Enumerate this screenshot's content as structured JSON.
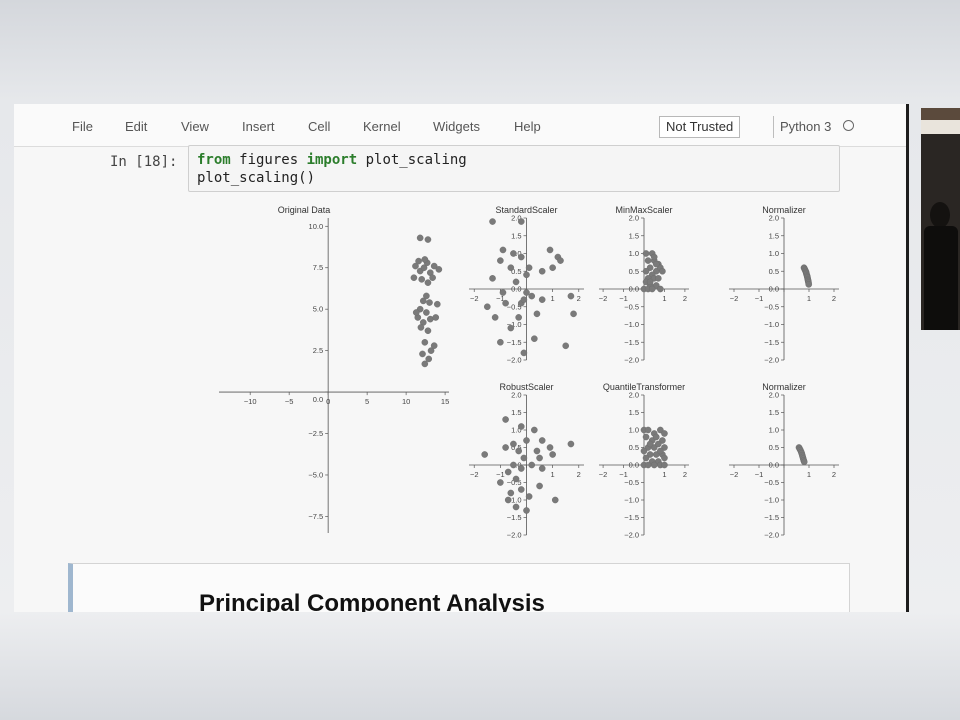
{
  "menubar": {
    "items": [
      "File",
      "Edit",
      "View",
      "Insert",
      "Cell",
      "Kernel",
      "Widgets",
      "Help"
    ],
    "trust_label": "Not Trusted",
    "kernel_name": "Python 3"
  },
  "code_cell": {
    "prompt": "In [18]:",
    "line1": {
      "kw1": "from",
      "t1": " figures ",
      "kw2": "import",
      "t2": " plot_scaling"
    },
    "line2": "plot_scaling()"
  },
  "markdown_cell": {
    "heading": "Principal Component Analysis"
  },
  "chart_data": [
    {
      "type": "scatter",
      "title": "Original Data",
      "xticks": [
        -10,
        -5,
        0,
        5,
        10,
        15
      ],
      "yticks": [
        -7.5,
        -5.0,
        -2.5,
        0.0,
        2.5,
        5.0,
        7.5,
        10.0
      ],
      "xlim": [
        -14,
        15.5
      ],
      "ylim": [
        -8.5,
        10.5
      ],
      "marker_color": "#7a7a7a",
      "points": [
        [
          11.8,
          9.3
        ],
        [
          12.8,
          9.2
        ],
        [
          11.2,
          7.6
        ],
        [
          11.8,
          7.3
        ],
        [
          12.3,
          7.5
        ],
        [
          12.7,
          7.8
        ],
        [
          13.1,
          7.2
        ],
        [
          13.6,
          7.6
        ],
        [
          14.2,
          7.4
        ],
        [
          11.0,
          6.9
        ],
        [
          12.0,
          6.8
        ],
        [
          12.8,
          6.6
        ],
        [
          13.4,
          6.9
        ],
        [
          11.6,
          7.9
        ],
        [
          12.4,
          8.0
        ],
        [
          12.6,
          5.8
        ],
        [
          12.2,
          5.5
        ],
        [
          13.0,
          5.4
        ],
        [
          14.0,
          5.3
        ],
        [
          11.8,
          5.0
        ],
        [
          12.6,
          4.8
        ],
        [
          11.5,
          4.5
        ],
        [
          12.2,
          4.2
        ],
        [
          13.1,
          4.4
        ],
        [
          11.9,
          3.9
        ],
        [
          12.8,
          3.7
        ],
        [
          13.8,
          4.5
        ],
        [
          11.3,
          4.8
        ],
        [
          12.4,
          3.0
        ],
        [
          13.2,
          2.5
        ],
        [
          12.1,
          2.3
        ],
        [
          12.9,
          2.0
        ],
        [
          13.6,
          2.8
        ],
        [
          12.4,
          1.7
        ]
      ]
    },
    {
      "type": "scatter",
      "title": "StandardScaler",
      "xticks": [
        -2,
        -1,
        0,
        1,
        2
      ],
      "yticks": [
        -2.0,
        -1.5,
        -1.0,
        -0.5,
        0.0,
        0.5,
        1.0,
        1.5,
        2.0
      ],
      "xlim": [
        -2.2,
        2.2
      ],
      "ylim": [
        -2.0,
        2.0
      ],
      "marker_color": "#7a7a7a",
      "points": [
        [
          -1.3,
          1.9
        ],
        [
          -0.2,
          1.9
        ],
        [
          -0.9,
          1.1
        ],
        [
          -0.5,
          1.0
        ],
        [
          0.9,
          1.1
        ],
        [
          1.2,
          0.9
        ],
        [
          -0.2,
          0.9
        ],
        [
          0.1,
          0.6
        ],
        [
          0.6,
          0.5
        ],
        [
          1.0,
          0.6
        ],
        [
          -1.0,
          0.8
        ],
        [
          -0.6,
          0.6
        ],
        [
          0.0,
          0.4
        ],
        [
          1.3,
          0.8
        ],
        [
          -0.4,
          0.2
        ],
        [
          -1.3,
          0.3
        ],
        [
          -0.9,
          -0.1
        ],
        [
          0.0,
          -0.1
        ],
        [
          0.2,
          -0.2
        ],
        [
          0.6,
          -0.3
        ],
        [
          -0.2,
          -0.4
        ],
        [
          -1.5,
          -0.5
        ],
        [
          -1.2,
          -0.8
        ],
        [
          -0.8,
          -0.4
        ],
        [
          -0.3,
          -0.8
        ],
        [
          0.4,
          -0.7
        ],
        [
          1.8,
          -0.7
        ],
        [
          -0.6,
          -1.1
        ],
        [
          0.3,
          -1.4
        ],
        [
          -1.0,
          -1.5
        ],
        [
          -0.1,
          -1.8
        ],
        [
          1.5,
          -1.6
        ],
        [
          1.7,
          -0.2
        ],
        [
          -0.1,
          -0.3
        ]
      ]
    },
    {
      "type": "scatter",
      "title": "MinMaxScaler",
      "xticks": [
        -2,
        -1,
        0,
        1,
        2
      ],
      "yticks": [
        -2.0,
        -1.5,
        -1.0,
        -0.5,
        0.0,
        0.5,
        1.0,
        1.5,
        2.0
      ],
      "xlim": [
        -2.2,
        2.2
      ],
      "ylim": [
        -2.0,
        2.0
      ],
      "marker_color": "#7a7a7a",
      "points": [
        [
          0.1,
          1.0
        ],
        [
          0.4,
          1.0
        ],
        [
          0.2,
          0.8
        ],
        [
          0.5,
          0.8
        ],
        [
          0.7,
          0.7
        ],
        [
          0.3,
          0.6
        ],
        [
          0.6,
          0.5
        ],
        [
          0.1,
          0.5
        ],
        [
          0.8,
          0.6
        ],
        [
          0.4,
          0.4
        ],
        [
          0.2,
          0.3
        ],
        [
          0.5,
          0.3
        ],
        [
          0.7,
          0.3
        ],
        [
          0.1,
          0.2
        ],
        [
          0.3,
          0.1
        ],
        [
          0.6,
          0.1
        ],
        [
          0.0,
          0.0
        ],
        [
          0.2,
          0.0
        ],
        [
          0.4,
          0.0
        ],
        [
          0.8,
          0.0
        ],
        [
          0.9,
          0.5
        ],
        [
          0.5,
          0.9
        ],
        [
          0.3,
          0.2
        ],
        [
          0.6,
          0.7
        ]
      ]
    },
    {
      "type": "scatter",
      "title": "Normalizer",
      "xticks": [
        -2,
        -1,
        0,
        1,
        2
      ],
      "yticks": [
        -2.0,
        -1.5,
        -1.0,
        -0.5,
        0.0,
        0.5,
        1.0,
        1.5,
        2.0
      ],
      "xlim": [
        -2.2,
        2.2
      ],
      "ylim": [
        -2.0,
        2.0
      ],
      "marker_color": "#7a7a7a",
      "points": [
        [
          0.8,
          0.6
        ],
        [
          0.82,
          0.57
        ],
        [
          0.84,
          0.54
        ],
        [
          0.86,
          0.51
        ],
        [
          0.88,
          0.48
        ],
        [
          0.89,
          0.45
        ],
        [
          0.9,
          0.42
        ],
        [
          0.92,
          0.38
        ],
        [
          0.93,
          0.35
        ],
        [
          0.94,
          0.32
        ],
        [
          0.95,
          0.28
        ],
        [
          0.96,
          0.25
        ],
        [
          0.97,
          0.22
        ],
        [
          0.98,
          0.18
        ],
        [
          0.99,
          0.13
        ]
      ]
    },
    {
      "type": "scatter",
      "title": "RobustScaler",
      "xticks": [
        -2,
        -1,
        0,
        1,
        2
      ],
      "yticks": [
        -2.0,
        -1.5,
        -1.0,
        -0.5,
        0.0,
        0.5,
        1.0,
        1.5,
        2.0
      ],
      "xlim": [
        -2.2,
        2.2
      ],
      "ylim": [
        -2.0,
        2.0
      ],
      "marker_color": "#7a7a7a",
      "points": [
        [
          -0.8,
          1.3
        ],
        [
          -0.2,
          1.1
        ],
        [
          0.3,
          1.0
        ],
        [
          -0.5,
          0.6
        ],
        [
          0.0,
          0.7
        ],
        [
          0.6,
          0.7
        ],
        [
          0.9,
          0.5
        ],
        [
          -0.8,
          0.5
        ],
        [
          -0.3,
          0.4
        ],
        [
          0.4,
          0.4
        ],
        [
          1.7,
          0.6
        ],
        [
          -1.6,
          0.3
        ],
        [
          -0.1,
          0.2
        ],
        [
          0.5,
          0.2
        ],
        [
          1.0,
          0.3
        ],
        [
          -0.5,
          0.0
        ],
        [
          0.2,
          0.0
        ],
        [
          -0.2,
          -0.1
        ],
        [
          -0.7,
          -0.2
        ],
        [
          0.6,
          -0.1
        ],
        [
          -0.4,
          -0.4
        ],
        [
          -1.0,
          -0.5
        ],
        [
          -0.2,
          -0.7
        ],
        [
          0.5,
          -0.6
        ],
        [
          -0.6,
          -0.8
        ],
        [
          0.1,
          -0.9
        ],
        [
          1.1,
          -1.0
        ],
        [
          -0.4,
          -1.2
        ],
        [
          0.0,
          -1.3
        ],
        [
          -0.7,
          -1.0
        ]
      ]
    },
    {
      "type": "scatter",
      "title": "QuantileTransformer",
      "xticks": [
        -2,
        -1,
        0,
        1,
        2
      ],
      "yticks": [
        -2.0,
        -1.5,
        -1.0,
        -0.5,
        0.0,
        0.5,
        1.0,
        1.5,
        2.0
      ],
      "xlim": [
        -2.2,
        2.2
      ],
      "ylim": [
        -2.0,
        2.0
      ],
      "marker_color": "#7a7a7a",
      "points": [
        [
          0.0,
          1.0
        ],
        [
          0.2,
          1.0
        ],
        [
          0.5,
          0.9
        ],
        [
          0.8,
          1.0
        ],
        [
          1.0,
          0.9
        ],
        [
          0.1,
          0.8
        ],
        [
          0.4,
          0.7
        ],
        [
          0.6,
          0.8
        ],
        [
          0.9,
          0.7
        ],
        [
          0.2,
          0.5
        ],
        [
          0.5,
          0.5
        ],
        [
          0.7,
          0.6
        ],
        [
          1.0,
          0.5
        ],
        [
          0.0,
          0.4
        ],
        [
          0.3,
          0.3
        ],
        [
          0.6,
          0.3
        ],
        [
          0.9,
          0.3
        ],
        [
          0.1,
          0.2
        ],
        [
          0.4,
          0.1
        ],
        [
          0.7,
          0.1
        ],
        [
          1.0,
          0.2
        ],
        [
          0.0,
          0.0
        ],
        [
          0.2,
          0.0
        ],
        [
          0.5,
          0.0
        ],
        [
          0.8,
          0.0
        ],
        [
          1.0,
          0.0
        ],
        [
          0.3,
          0.6
        ],
        [
          0.8,
          0.4
        ]
      ]
    },
    {
      "type": "scatter",
      "title": "Normalizer",
      "xticks": [
        -2,
        -1,
        0,
        1,
        2
      ],
      "yticks": [
        -2.0,
        -1.5,
        -1.0,
        -0.5,
        0.0,
        0.5,
        1.0,
        1.5,
        2.0
      ],
      "xlim": [
        -2.2,
        2.2
      ],
      "ylim": [
        -2.0,
        2.0
      ],
      "marker_color": "#7a7a7a",
      "points": [
        [
          0.6,
          0.5
        ],
        [
          0.63,
          0.46
        ],
        [
          0.66,
          0.42
        ],
        [
          0.69,
          0.37
        ],
        [
          0.71,
          0.33
        ],
        [
          0.73,
          0.28
        ],
        [
          0.75,
          0.23
        ],
        [
          0.77,
          0.18
        ],
        [
          0.79,
          0.13
        ],
        [
          0.81,
          0.09
        ]
      ]
    }
  ]
}
